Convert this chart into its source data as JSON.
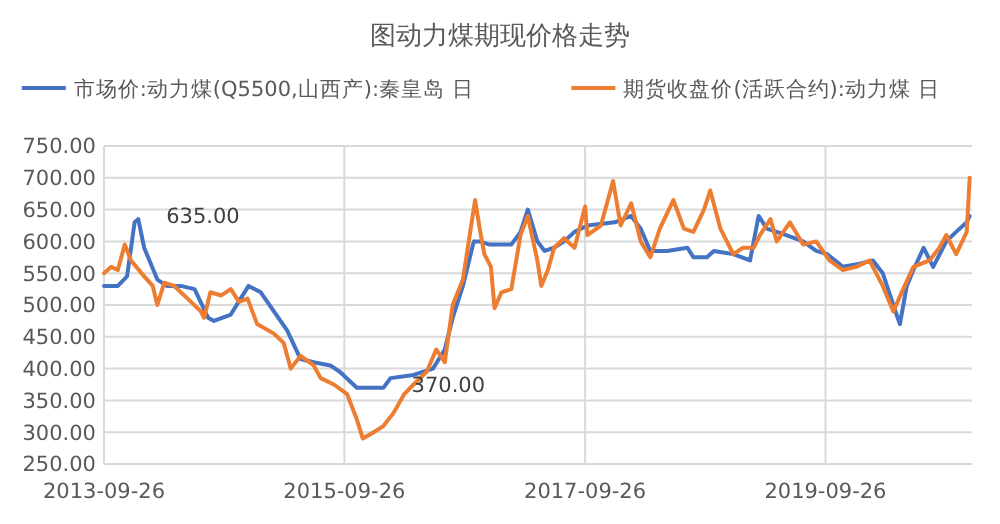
{
  "chart_data": {
    "type": "line",
    "title": "图动力煤期现价格走势",
    "legend": "top",
    "grid": true,
    "line_style": "solid",
    "marker": "none",
    "xlim": [
      "2013-09-26",
      "2020-12-14"
    ],
    "xticks": [
      "2013-09-26",
      "2015-09-26",
      "2017-09-26",
      "2019-09-26"
    ],
    "ylim": [
      250,
      750
    ],
    "yticks": [
      {
        "value": 250,
        "label": "250.00"
      },
      {
        "value": 300,
        "label": "300.00"
      },
      {
        "value": 350,
        "label": "350.00"
      },
      {
        "value": 400,
        "label": "400.00"
      },
      {
        "value": 450,
        "label": "450.00"
      },
      {
        "value": 500,
        "label": "500.00"
      },
      {
        "value": 550,
        "label": "550.00"
      },
      {
        "value": 600,
        "label": "600.00"
      },
      {
        "value": 650,
        "label": "650.00"
      },
      {
        "value": 700,
        "label": "700.00"
      },
      {
        "value": 750,
        "label": "750.00"
      }
    ],
    "annotations": [
      {
        "text": "635.00",
        "x": "2014-01-08",
        "y": 635
      },
      {
        "text": "370.00",
        "x": "2016-01-23",
        "y": 370
      }
    ],
    "series": [
      {
        "name": "市场价:动力煤(Q5500,山西产):秦皇岛 日",
        "color": "#4472c4",
        "x": [
          "2013-09-26",
          "2013-11-07",
          "2013-12-05",
          "2013-12-28",
          "2014-01-08",
          "2014-01-26",
          "2014-03-07",
          "2014-04-05",
          "2014-05-17",
          "2014-06-28",
          "2014-08-08",
          "2014-08-26",
          "2014-10-16",
          "2014-11-15",
          "2014-12-09",
          "2015-01-15",
          "2015-02-24",
          "2015-04-05",
          "2015-05-16",
          "2015-06-25",
          "2015-08-14",
          "2015-09-12",
          "2015-11-03",
          "2016-01-23",
          "2016-02-13",
          "2016-04-23",
          "2016-06-21",
          "2016-07-27",
          "2016-08-20",
          "2016-09-20",
          "2016-10-23",
          "2016-11-10",
          "2016-12-10",
          "2017-02-14",
          "2017-03-14",
          "2017-04-05",
          "2017-05-04",
          "2017-05-26",
          "2017-06-24",
          "2017-07-24",
          "2017-08-25",
          "2017-10-03",
          "2017-12-25",
          "2018-02-13",
          "2018-03-14",
          "2018-04-12",
          "2018-06-02",
          "2018-08-03",
          "2018-08-21",
          "2018-10-01",
          "2018-10-22",
          "2018-12-20",
          "2019-02-09",
          "2019-03-07",
          "2019-04-01",
          "2019-05-30",
          "2019-07-20",
          "2019-08-29",
          "2019-10-01",
          "2019-11-18",
          "2020-01-08",
          "2020-02-17",
          "2020-03-18",
          "2020-04-19",
          "2020-05-09",
          "2020-05-30",
          "2020-06-19",
          "2020-07-20",
          "2020-08-18",
          "2020-09-27",
          "2020-10-27",
          "2020-11-28",
          "2020-12-07"
        ],
        "values": [
          530,
          530,
          545,
          630,
          635,
          590,
          540,
          530,
          530,
          525,
          480,
          475,
          485,
          510,
          530,
          520,
          490,
          460,
          415,
          410,
          405,
          395,
          370,
          370,
          385,
          390,
          400,
          430,
          480,
          530,
          600,
          600,
          595,
          595,
          615,
          650,
          600,
          585,
          590,
          600,
          615,
          625,
          630,
          640,
          620,
          585,
          585,
          590,
          575,
          575,
          585,
          580,
          570,
          640,
          620,
          610,
          600,
          585,
          580,
          560,
          565,
          570,
          550,
          500,
          470,
          530,
          555,
          590,
          560,
          600,
          615,
          630,
          640
        ]
      },
      {
        "name": "期货收盘价(活跃合约):动力煤 日",
        "color": "#ed7d31",
        "x": [
          "2013-09-26",
          "2013-10-18",
          "2013-11-07",
          "2013-11-28",
          "2013-12-17",
          "2014-01-26",
          "2014-02-21",
          "2014-03-07",
          "2014-03-28",
          "2014-04-27",
          "2014-06-07",
          "2014-07-17",
          "2014-07-27",
          "2014-08-15",
          "2014-09-17",
          "2014-10-16",
          "2014-11-10",
          "2014-12-06",
          "2015-01-04",
          "2015-02-24",
          "2015-03-26",
          "2015-04-16",
          "2015-05-16",
          "2015-06-25",
          "2015-07-16",
          "2015-08-25",
          "2015-10-04",
          "2015-11-03",
          "2015-11-21",
          "2015-12-24",
          "2016-01-23",
          "2016-02-22",
          "2016-03-26",
          "2016-04-23",
          "2016-06-02",
          "2016-07-01",
          "2016-07-27",
          "2016-08-20",
          "2016-09-20",
          "2016-10-27",
          "2016-11-10",
          "2016-11-24",
          "2016-12-14",
          "2016-12-25",
          "2017-01-15",
          "2017-02-14",
          "2017-03-14",
          "2017-04-05",
          "2017-05-04",
          "2017-05-16",
          "2017-06-05",
          "2017-06-24",
          "2017-07-24",
          "2017-08-25",
          "2017-09-26",
          "2017-10-03",
          "2017-11-13",
          "2017-12-20",
          "2018-01-12",
          "2018-02-13",
          "2018-03-14",
          "2018-04-12",
          "2018-05-11",
          "2018-06-21",
          "2018-07-23",
          "2018-08-21",
          "2018-09-22",
          "2018-10-11",
          "2018-11-11",
          "2018-12-20",
          "2019-01-19",
          "2019-02-20",
          "2019-03-11",
          "2019-04-12",
          "2019-05-01",
          "2019-06-10",
          "2019-07-20",
          "2019-08-29",
          "2019-10-08",
          "2019-11-18",
          "2019-12-28",
          "2020-02-07",
          "2020-03-18",
          "2020-04-19",
          "2020-05-19",
          "2020-06-19",
          "2020-08-07",
          "2020-09-06",
          "2020-09-27",
          "2020-10-27",
          "2020-11-28",
          "2020-12-07"
        ],
        "values": [
          550,
          560,
          555,
          595,
          570,
          545,
          530,
          500,
          535,
          530,
          510,
          490,
          480,
          520,
          515,
          525,
          505,
          510,
          470,
          455,
          440,
          400,
          420,
          405,
          385,
          375,
          360,
          320,
          290,
          300,
          310,
          330,
          360,
          375,
          395,
          430,
          410,
          500,
          540,
          665,
          620,
          580,
          560,
          495,
          520,
          525,
          610,
          640,
          570,
          530,
          555,
          590,
          605,
          590,
          655,
          610,
          625,
          695,
          625,
          660,
          600,
          575,
          620,
          665,
          620,
          615,
          650,
          680,
          620,
          580,
          590,
          590,
          610,
          635,
          600,
          630,
          595,
          600,
          570,
          555,
          560,
          570,
          530,
          490,
          525,
          560,
          570,
          590,
          610,
          580,
          615,
          700
        ]
      }
    ]
  }
}
